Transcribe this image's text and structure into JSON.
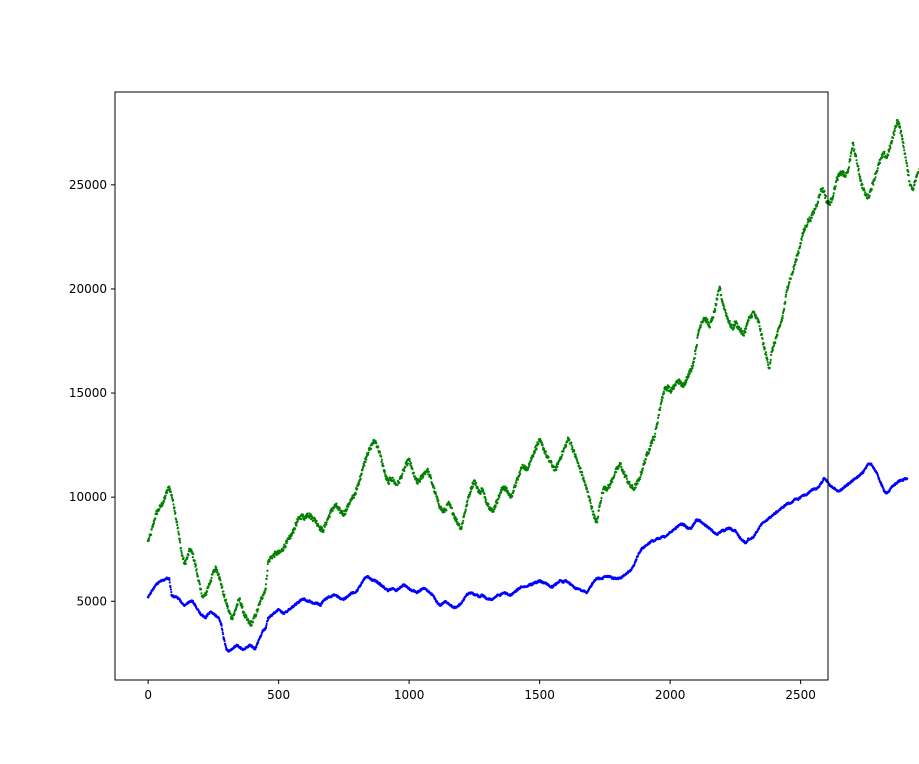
{
  "chart_data": {
    "type": "scatter",
    "title": "",
    "xlabel": "",
    "ylabel": "",
    "xlim": [
      -127,
      2605
    ],
    "ylim": [
      1218,
      29460
    ],
    "xticks": [
      0,
      500,
      1000,
      1500,
      2000,
      2500
    ],
    "xtick_labels": [
      "0",
      "500",
      "1000",
      "1500",
      "2000",
      "2500"
    ],
    "yticks": [
      5000,
      10000,
      15000,
      20000,
      25000
    ],
    "ytick_labels": [
      "5000",
      "10000",
      "15000",
      "20000",
      "25000"
    ],
    "grid": false,
    "legend": "none",
    "point_spacing": 10,
    "series": [
      {
        "color": "#008000",
        "values": [
          7900,
          8200,
          8700,
          9200,
          9400,
          9600,
          9800,
          10200,
          10500,
          10100,
          9500,
          8800,
          8000,
          7200,
          6800,
          7100,
          7500,
          7300,
          6800,
          6200,
          5600,
          5200,
          5300,
          5700,
          6000,
          6400,
          6600,
          6300,
          5800,
          5300,
          4900,
          4500,
          4200,
          4400,
          4800,
          5100,
          4700,
          4300,
          4100,
          3900,
          4000,
          4300,
          4600,
          5000,
          5300,
          5600,
          6900,
          7100,
          7200,
          7300,
          7300,
          7400,
          7600,
          7800,
          8000,
          8200,
          8500,
          8800,
          9000,
          9100,
          9000,
          9200,
          9100,
          9000,
          8900,
          8700,
          8500,
          8400,
          8700,
          9000,
          9300,
          9500,
          9600,
          9400,
          9300,
          9200,
          9400,
          9700,
          9900,
          10100,
          10400,
          10800,
          11300,
          11700,
          12100,
          12300,
          12600,
          12700,
          12400,
          12000,
          11500,
          11000,
          10700,
          10900,
          10800,
          10600,
          10700,
          11000,
          11300,
          11600,
          11800,
          11400,
          11000,
          10700,
          10800,
          11000,
          11200,
          11300,
          11000,
          10600,
          10200,
          9800,
          9500,
          9300,
          9400,
          9700,
          9500,
          9200,
          8900,
          8700,
          8500,
          9100,
          9600,
          10100,
          10500,
          10800,
          10500,
          10200,
          10400,
          10000,
          9700,
          9500,
          9300,
          9600,
          9900,
          10200,
          10500,
          10400,
          10200,
          10000,
          10300,
          10700,
          11000,
          11400,
          11500,
          11300,
          11600,
          11900,
          12200,
          12500,
          12700,
          12500,
          12200,
          11900,
          11700,
          11500,
          11300,
          11600,
          11900,
          12200,
          12500,
          12800,
          12600,
          12200,
          11900,
          11500,
          11200,
          10800,
          10400,
          10000,
          9500,
          9000,
          8800,
          9600,
          10200,
          10500,
          10400,
          10600,
          10900,
          11200,
          11400,
          11600,
          11200,
          11000,
          10700,
          10500,
          10400,
          10600,
          10800,
          11200,
          11600,
          12000,
          12300,
          12700,
          12900,
          13500,
          14200,
          14800,
          15200,
          15300,
          15100,
          15200,
          15400,
          15600,
          15500,
          15300,
          15600,
          15900,
          16100,
          16500,
          17200,
          18000,
          18400,
          18600,
          18500,
          18200,
          18500,
          18900,
          19500,
          20100,
          19400,
          19000,
          18600,
          18300,
          18100,
          18400,
          18200,
          18000,
          17800,
          18100,
          18500,
          18700,
          18900,
          18600,
          18400,
          17800,
          17200,
          16700,
          16200,
          17000,
          17400,
          17800,
          18200,
          18600,
          19300,
          20100,
          20500,
          20800,
          21300,
          21700,
          22200,
          22700,
          23000,
          23300,
          23400,
          23700,
          24000,
          24400,
          24800,
          24700,
          24200,
          24100,
          24300,
          24800,
          25300,
          25500,
          25600,
          25400,
          25600,
          26200,
          27000,
          26400,
          25900,
          25200,
          24800,
          24500,
          24400,
          24800,
          25200,
          25600,
          26000,
          26300,
          26500,
          26300,
          26700,
          27100,
          27600,
          28100,
          27800,
          27200,
          26500,
          25700,
          25000,
          24800,
          25200,
          25600,
          25900,
          26100,
          26400,
          26700,
          27000
        ]
      },
      {
        "color": "#0000ff",
        "values": [
          5200,
          5400,
          5600,
          5800,
          5900,
          6000,
          6000,
          6100,
          6100,
          5300,
          5200,
          5200,
          5100,
          4900,
          4800,
          4900,
          5000,
          5000,
          4800,
          4600,
          4400,
          4300,
          4200,
          4400,
          4500,
          4400,
          4300,
          4200,
          3900,
          3200,
          2700,
          2600,
          2700,
          2800,
          2900,
          2800,
          2700,
          2700,
          2800,
          2900,
          2800,
          2700,
          3000,
          3300,
          3600,
          3700,
          4200,
          4300,
          4400,
          4500,
          4600,
          4500,
          4400,
          4500,
          4600,
          4700,
          4800,
          4900,
          5000,
          5100,
          5100,
          5000,
          5000,
          4900,
          4900,
          4900,
          4800,
          5000,
          5100,
          5200,
          5200,
          5300,
          5300,
          5200,
          5100,
          5100,
          5200,
          5300,
          5400,
          5400,
          5500,
          5700,
          5900,
          6100,
          6200,
          6100,
          6000,
          6000,
          5900,
          5800,
          5700,
          5600,
          5500,
          5600,
          5600,
          5500,
          5600,
          5700,
          5800,
          5700,
          5600,
          5500,
          5500,
          5400,
          5500,
          5600,
          5600,
          5500,
          5400,
          5300,
          5100,
          4900,
          4800,
          4900,
          5000,
          4900,
          4800,
          4700,
          4700,
          4800,
          4900,
          5100,
          5300,
          5400,
          5400,
          5300,
          5300,
          5200,
          5300,
          5200,
          5100,
          5100,
          5100,
          5200,
          5300,
          5300,
          5400,
          5400,
          5300,
          5300,
          5400,
          5500,
          5600,
          5700,
          5700,
          5700,
          5800,
          5800,
          5900,
          5900,
          6000,
          5900,
          5900,
          5800,
          5700,
          5700,
          5800,
          5900,
          6000,
          5900,
          6000,
          5900,
          5800,
          5700,
          5600,
          5600,
          5500,
          5500,
          5400,
          5600,
          5800,
          6000,
          6100,
          6100,
          6100,
          6200,
          6200,
          6200,
          6100,
          6100,
          6100,
          6100,
          6200,
          6300,
          6400,
          6500,
          6700,
          7000,
          7300,
          7500,
          7600,
          7700,
          7800,
          7900,
          7900,
          8000,
          8000,
          8100,
          8100,
          8200,
          8300,
          8400,
          8500,
          8600,
          8700,
          8700,
          8600,
          8500,
          8500,
          8700,
          8900,
          8900,
          8800,
          8700,
          8600,
          8500,
          8400,
          8300,
          8200,
          8300,
          8400,
          8400,
          8500,
          8500,
          8400,
          8400,
          8200,
          8000,
          7900,
          7800,
          8000,
          8000,
          8100,
          8300,
          8500,
          8700,
          8800,
          8900,
          9000,
          9100,
          9200,
          9300,
          9400,
          9500,
          9600,
          9700,
          9700,
          9800,
          9900,
          9900,
          10000,
          10100,
          10100,
          10200,
          10300,
          10400,
          10400,
          10500,
          10700,
          10900,
          10800,
          10600,
          10500,
          10400,
          10300,
          10300,
          10400,
          10500,
          10600,
          10700,
          10800,
          10900,
          11000,
          11100,
          11200,
          11400,
          11600,
          11600,
          11400,
          11200,
          10900,
          10600,
          10300,
          10200,
          10300,
          10500,
          10600,
          10700,
          10800,
          10800,
          10900
        ]
      }
    ]
  }
}
